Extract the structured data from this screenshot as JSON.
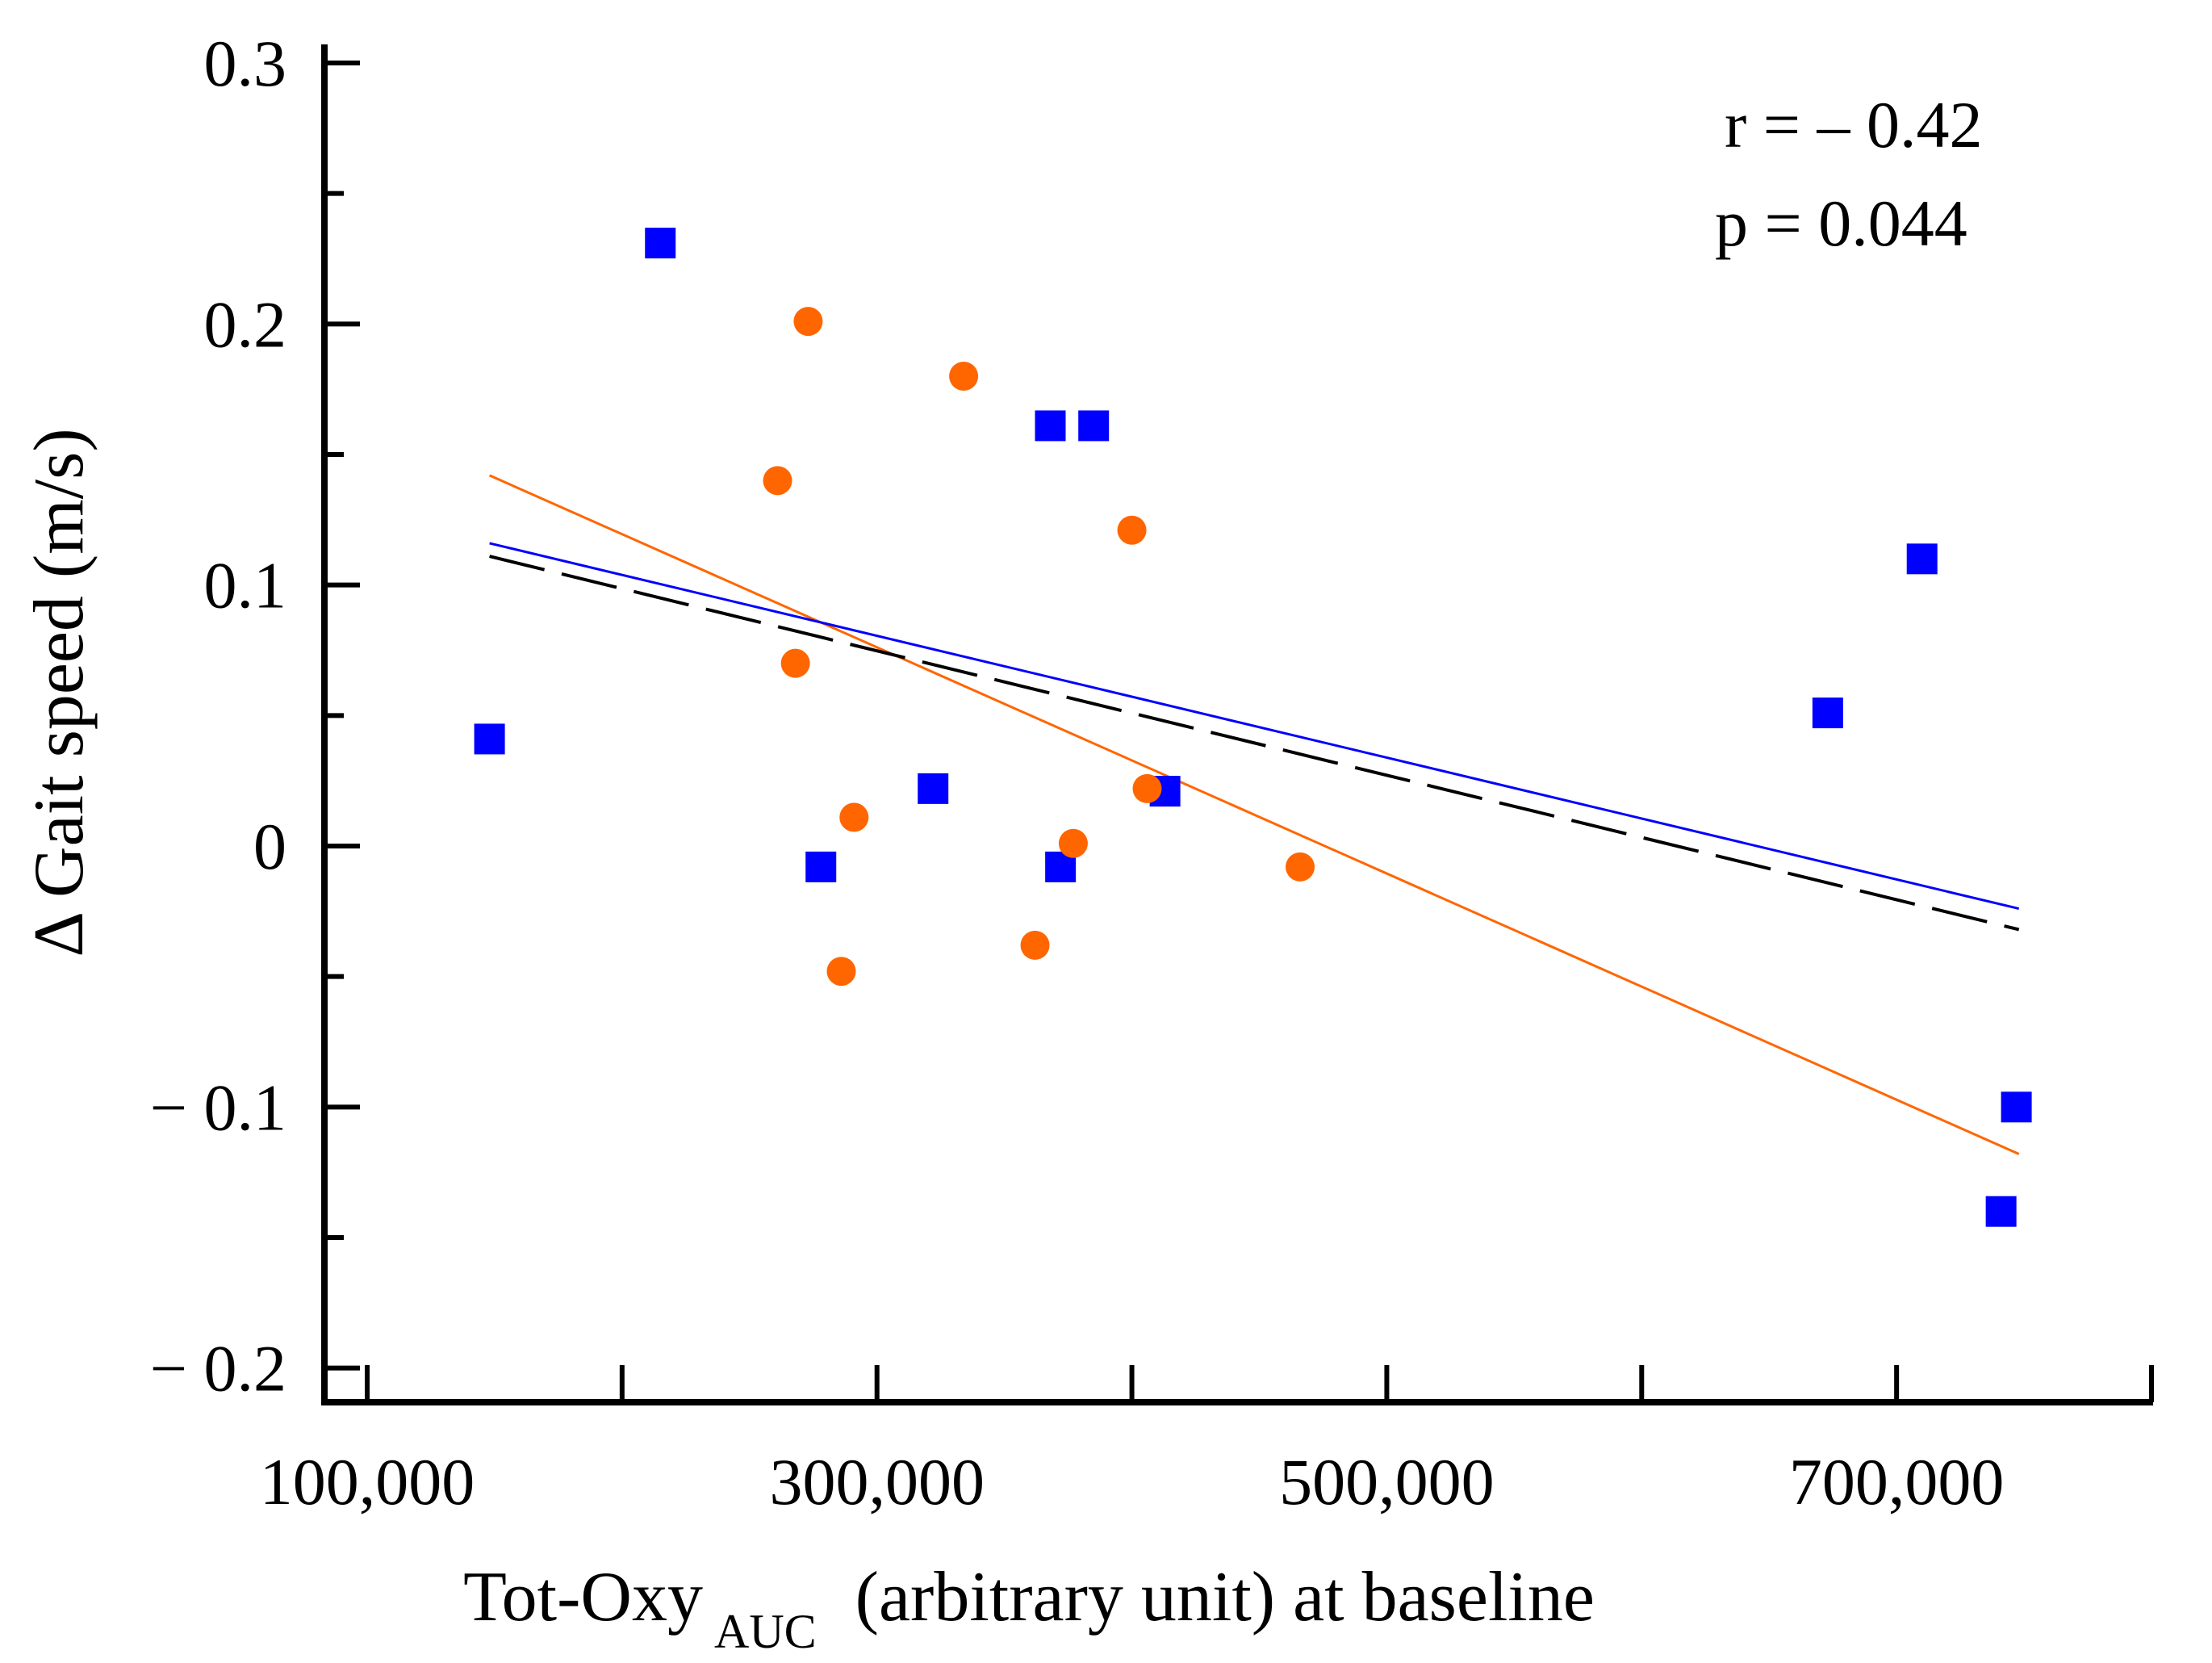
{
  "chart_data": {
    "type": "scatter",
    "title": "",
    "xlabel": {
      "main": "Tot-Oxy",
      "subscript": "AUC",
      "rest": "(arbitrary unit) at baseline"
    },
    "ylabel": "Δ Gait speed (m/s)",
    "xlim": [
      70000,
      830000
    ],
    "ylim": [
      -0.215,
      0.3
    ],
    "x_ticks_major": [
      100000,
      200000,
      300000,
      400000,
      500000,
      600000,
      700000,
      800000
    ],
    "x_tick_labels": [
      {
        "value": 100000,
        "label": "100,000"
      },
      {
        "value": 300000,
        "label": "300,000"
      },
      {
        "value": 500000,
        "label": "500,000"
      },
      {
        "value": 700000,
        "label": "700,000"
      }
    ],
    "y_ticks_major": [
      -0.2,
      -0.1,
      0,
      0.1,
      0.2,
      0.3
    ],
    "y_ticks_minor": [
      -0.15,
      -0.05,
      0.05,
      0.15,
      0.25
    ],
    "y_tick_labels": [
      {
        "value": 0.3,
        "label": "0.3"
      },
      {
        "value": 0.2,
        "label": "0.2"
      },
      {
        "value": 0.1,
        "label": "0.1"
      },
      {
        "value": 0,
        "label": "0"
      },
      {
        "value": -0.1,
        "label": "− 0.1"
      },
      {
        "value": -0.2,
        "label": "− 0.2"
      }
    ],
    "grid": false,
    "series": [
      {
        "name": "blue",
        "marker": "square",
        "color": "#0000ff",
        "points": [
          {
            "x": 148000,
            "y": 0.041
          },
          {
            "x": 215000,
            "y": 0.231
          },
          {
            "x": 278000,
            "y": -0.008
          },
          {
            "x": 322000,
            "y": 0.022
          },
          {
            "x": 368000,
            "y": 0.161
          },
          {
            "x": 372000,
            "y": -0.008
          },
          {
            "x": 385000,
            "y": 0.161
          },
          {
            "x": 413000,
            "y": 0.021
          },
          {
            "x": 673000,
            "y": 0.051
          },
          {
            "x": 710000,
            "y": 0.11
          },
          {
            "x": 741000,
            "y": -0.14
          },
          {
            "x": 747000,
            "y": -0.1
          }
        ]
      },
      {
        "name": "orange",
        "marker": "circle",
        "color": "#ff6600",
        "points": [
          {
            "x": 261000,
            "y": 0.14
          },
          {
            "x": 268000,
            "y": 0.07
          },
          {
            "x": 273000,
            "y": 0.201
          },
          {
            "x": 286000,
            "y": -0.048
          },
          {
            "x": 291000,
            "y": 0.011
          },
          {
            "x": 334000,
            "y": 0.18
          },
          {
            "x": 362000,
            "y": -0.038
          },
          {
            "x": 377000,
            "y": 0.001
          },
          {
            "x": 400000,
            "y": 0.121
          },
          {
            "x": 406000,
            "y": 0.022
          },
          {
            "x": 466000,
            "y": -0.008
          }
        ]
      }
    ],
    "fit_lines": [
      {
        "name": "orange fit",
        "color": "#ff6600",
        "style": "solid",
        "x": [
          148000,
          748000
        ],
        "y": [
          0.142,
          -0.118
        ]
      },
      {
        "name": "blue fit",
        "color": "#0000ff",
        "style": "solid",
        "x": [
          148000,
          748000
        ],
        "y": [
          0.116,
          -0.024
        ]
      },
      {
        "name": "overall fit",
        "color": "#000000",
        "style": "dashed",
        "x": [
          148000,
          748000
        ],
        "y": [
          0.111,
          -0.032
        ]
      }
    ],
    "annotations": [
      {
        "text": "r = – 0.42"
      },
      {
        "text": "p = 0.044"
      }
    ]
  }
}
